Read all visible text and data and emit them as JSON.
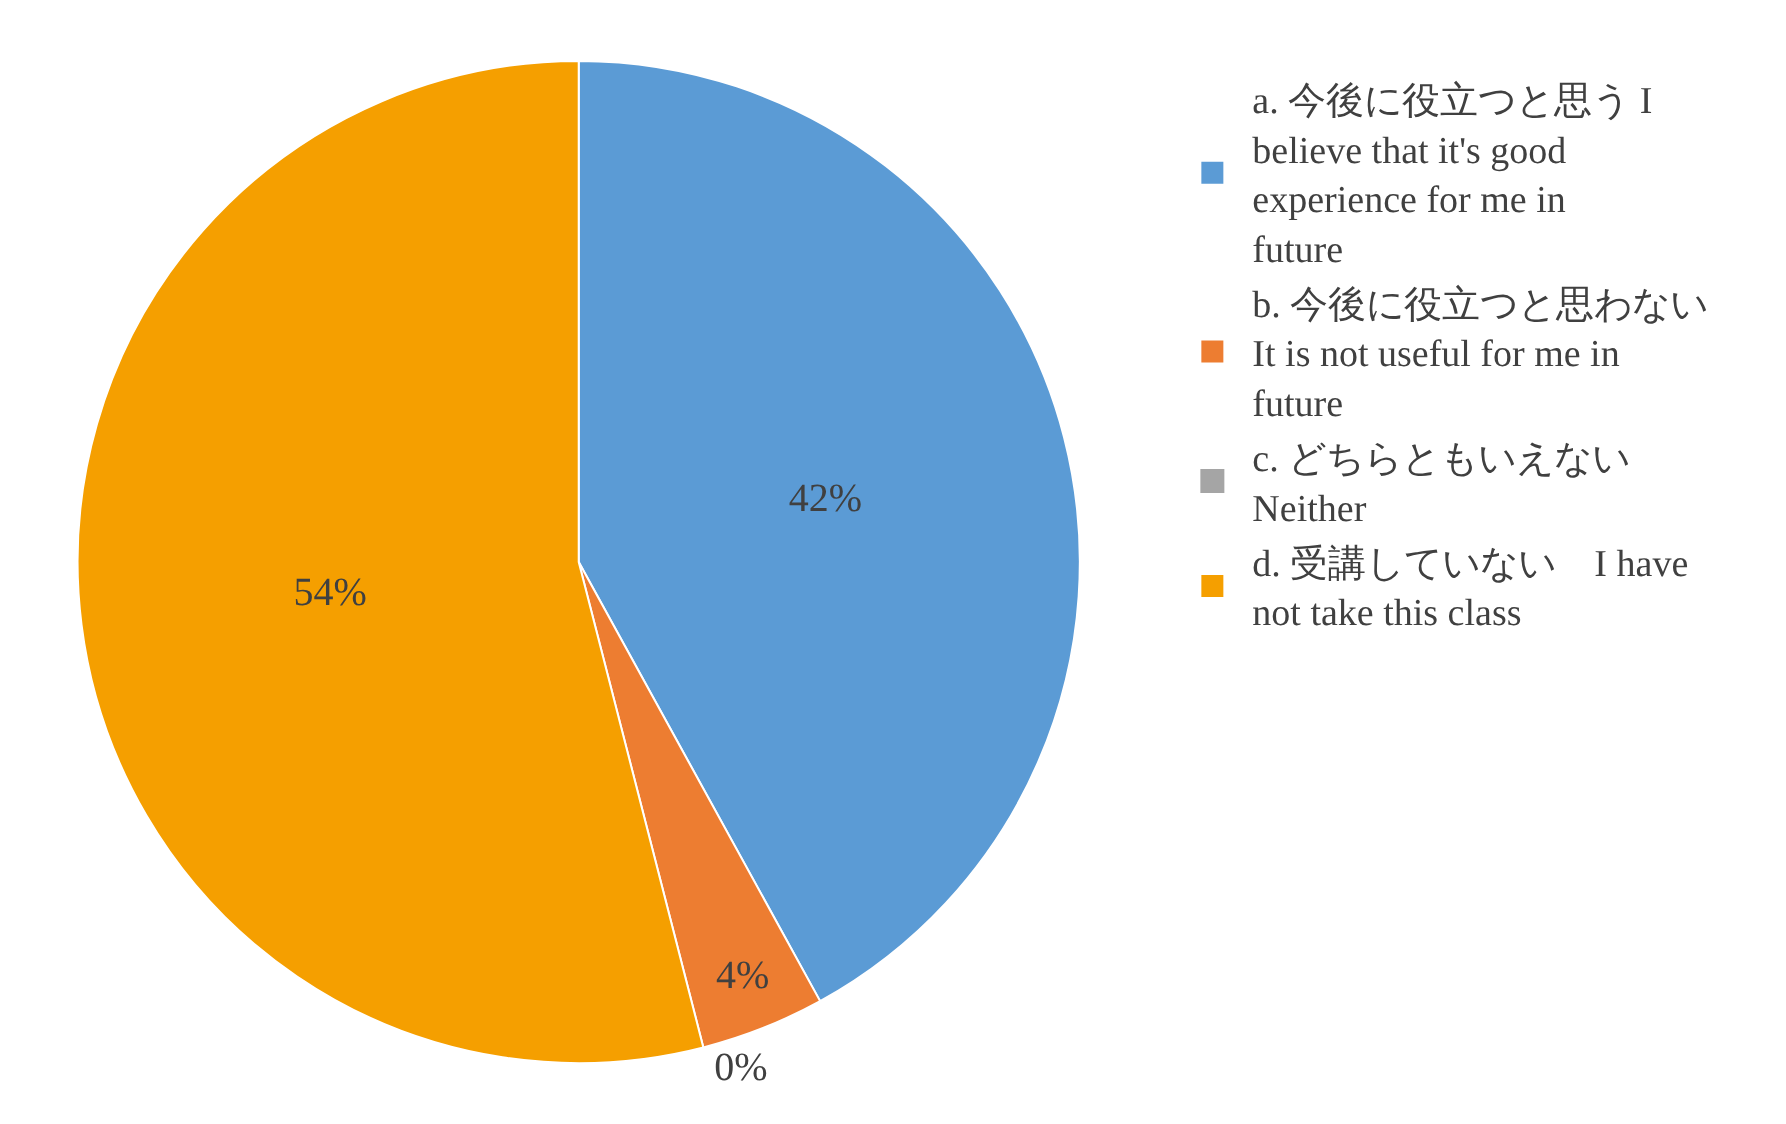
{
  "chart_data": {
    "type": "pie",
    "categories": [
      "a. 今後に役立つと思う I believe that it's good experience for me in future",
      "b. 今後に役立つと思わない It is not useful for me in future",
      "c. どちらともいえない Neither",
      "d. 受講していない　I have not take this class"
    ],
    "values": [
      42,
      4,
      0,
      54
    ],
    "colors": [
      "#5b9bd5",
      "#ed7d31",
      "#a5a5a5",
      "#f59f00"
    ],
    "value_labels": [
      "42%",
      "4%",
      "0%",
      "54%"
    ],
    "legend": "right"
  }
}
